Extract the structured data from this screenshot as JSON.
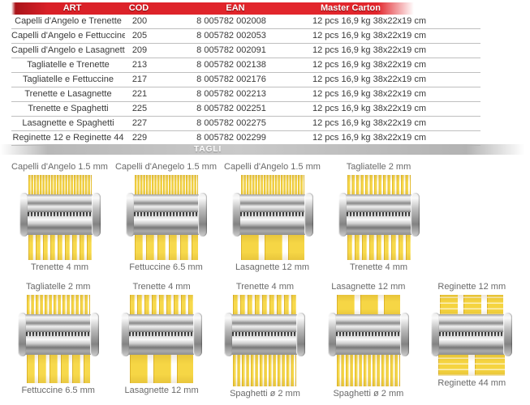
{
  "table": {
    "headers": [
      "ART",
      "COD",
      "EAN",
      "Master Carton"
    ],
    "rows": [
      {
        "art": "Capelli d'Angelo e Trenette",
        "cod": "200",
        "ean": "8 005782 002008",
        "carton": "12 pcs 16,9 kg 38x22x19 cm"
      },
      {
        "art": "Capelli d'Angelo e Fettuccine",
        "cod": "205",
        "ean": "8 005782 002053",
        "carton": "12 pcs 16,9 kg 38x22x19 cm"
      },
      {
        "art": "Capelli d'Angelo e Lasagnette",
        "cod": "209",
        "ean": "8 005782 002091",
        "carton": "12 pcs 16,9 kg 38x22x19 cm"
      },
      {
        "art": "Tagliatelle e Trenette",
        "cod": "213",
        "ean": "8 005782 002138",
        "carton": "12 pcs 16,9 kg 38x22x19 cm"
      },
      {
        "art": "Tagliatelle e Fettuccine",
        "cod": "217",
        "ean": "8 005782 002176",
        "carton": "12 pcs 16,9 kg 38x22x19 cm"
      },
      {
        "art": "Trenette e Lasagnette",
        "cod": "221",
        "ean": "8 005782 002213",
        "carton": "12 pcs 16,9 kg 38x22x19 cm"
      },
      {
        "art": "Trenette e Spaghetti",
        "cod": "225",
        "ean": "8 005782 002251",
        "carton": "12 pcs 16,9 kg 38x22x19 cm"
      },
      {
        "art": "Lasagnette e Spaghetti",
        "cod": "227",
        "ean": "8 005782 002275",
        "carton": "12 pcs 16,9 kg 38x22x19 cm"
      },
      {
        "art": "Reginette 12 e Reginette 44",
        "cod": "229",
        "ean": "8 005782 002299",
        "carton": "12 pcs 16,9 kg 38x22x19 cm"
      }
    ]
  },
  "section": {
    "tagli_label": "TAGLI"
  },
  "cutters": {
    "row1": [
      {
        "top": "Capelli d'Angelo 1.5 mm",
        "bottom": "Trenette 4 mm"
      },
      {
        "top": "Capelli d'Anegelo 1.5 mm",
        "bottom": "Fettuccine 6.5 mm"
      },
      {
        "top": "Capelli d'Angelo 1.5 mm",
        "bottom": "Lasagnette 12 mm"
      },
      {
        "top": "Tagliatelle 2 mm",
        "bottom": "Trenette 4 mm"
      }
    ],
    "row2": [
      {
        "top": "Tagliatelle 2 mm",
        "bottom": "Fettuccine 6.5 mm"
      },
      {
        "top": "Trenette 4 mm",
        "bottom": "Lasagnette 12 mm"
      },
      {
        "top": "Trenette 4 mm",
        "bottom": "Spaghetti ø 2 mm"
      },
      {
        "top": "Lasagnette 12 mm",
        "bottom": "Spaghetti ø 2 mm"
      },
      {
        "top": "Reginette 12 mm",
        "bottom": "Reginette 44 mm"
      }
    ]
  },
  "colors": {
    "header_red": "#e2262c",
    "pasta_yellow": "#f6d84b",
    "bar_gray": "#bdbdbd",
    "label_gray": "#6a6a6a"
  }
}
